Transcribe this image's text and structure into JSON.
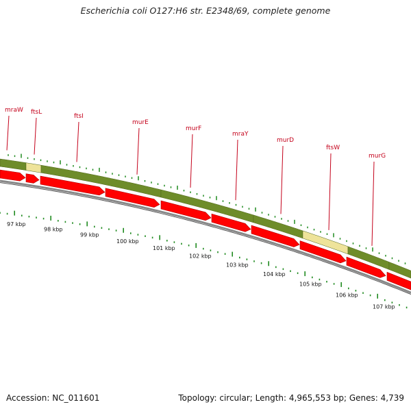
{
  "title": "Escherichia coli O127:H6 str. E2348/69, complete genome",
  "footer": {
    "accession": "Accession: NC_011601",
    "summary": "Topology: circular; Length: 4,965,553 bp; Genes: 4,739"
  },
  "colors": {
    "gene_label": "#c4001a",
    "gene_band": "#6e8c2a",
    "gene_band_highlight": "#eee39a",
    "cds_arrow": "#ff0000",
    "tick": "#1f8a1f",
    "backbone": "#888888"
  },
  "genes": [
    "mraW",
    "ftsL",
    "ftsI",
    "murE",
    "murF",
    "mraY",
    "murD",
    "ftsW",
    "murG"
  ],
  "kbp_ticks": [
    "97 kbp",
    "98 kbp",
    "99 kbp",
    "100 kbp",
    "101 kbp",
    "102 kbp",
    "103 kbp",
    "104 kbp",
    "105 kbp",
    "106 kbp",
    "107 kbp"
  ]
}
